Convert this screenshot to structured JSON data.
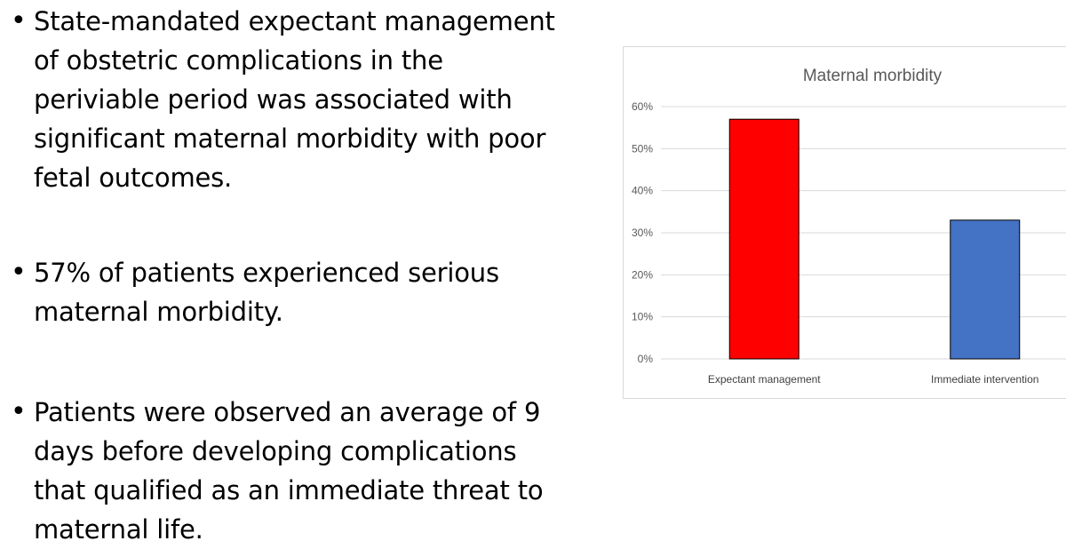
{
  "bullets": [
    {
      "symbol": "•",
      "lines": [
        "State-mandated expectant management",
        "of obstetric complications in the",
        "periviable period was associated with",
        "significant maternal morbidity with poor",
        "fetal outcomes."
      ]
    },
    {
      "symbol": "•",
      "lines": [
        "57% of patients experienced serious",
        "maternal morbidity."
      ]
    },
    {
      "symbol": "•",
      "lines": [
        "Patients were observed an average of 9",
        "days before developing complications",
        "that qualified as an immediate threat to",
        "maternal life."
      ]
    }
  ],
  "chart_data": {
    "type": "bar",
    "title": "Maternal morbidity",
    "categories": [
      "Expectant management",
      "Immediate intervention"
    ],
    "values": [
      57,
      33
    ],
    "colors": [
      "#ff0000",
      "#4472c4"
    ],
    "ylim": [
      0,
      60
    ],
    "yticks": [
      0,
      10,
      20,
      30,
      40,
      50,
      60
    ],
    "ytick_labels": [
      "0%",
      "10%",
      "20%",
      "30%",
      "40%",
      "50%",
      "60%"
    ],
    "xlabel": "",
    "ylabel": "",
    "grid": true
  }
}
